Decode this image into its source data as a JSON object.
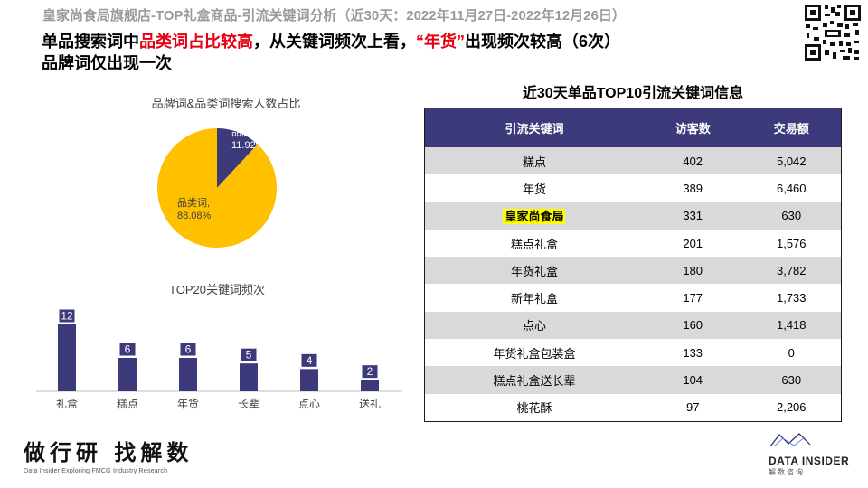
{
  "header": {
    "top_title": "皇家尚食局旗舰店-TOP礼盒商品-引流关键词分析（近30天：2022年11月27日-2022年12月26日）",
    "headline_part1": "单品搜索词中",
    "headline_red1": "品类词占比较高",
    "headline_part2": "，从关键词频次上看，",
    "headline_red2": "“年货”",
    "headline_part3": "出现频次较高（6次）",
    "headline_line2": "品牌词仅出现一次"
  },
  "colors": {
    "navy": "#3c3a7a",
    "gold": "#ffc000",
    "red": "#e60012",
    "highlight": "#ffff00"
  },
  "chart_data": [
    {
      "type": "pie",
      "title": "品牌词&品类词搜索人数占比",
      "slices": [
        {
          "name": "品牌词",
          "value": 11.92,
          "label": "品牌词,",
          "value_label": "11.92%"
        },
        {
          "name": "品类词",
          "value": 88.08,
          "label": "品类词,",
          "value_label": "88.08%"
        }
      ]
    },
    {
      "type": "bar",
      "title": "TOP20关键词频次",
      "categories": [
        "礼盒",
        "糕点",
        "年货",
        "长辈",
        "点心",
        "送礼"
      ],
      "values": [
        12,
        6,
        6,
        5,
        4,
        2
      ],
      "ylim": [
        0,
        12
      ]
    },
    {
      "type": "table",
      "title": "近30天单品TOP10引流关键词信息",
      "columns": [
        "引流关键词",
        "访客数",
        "交易额"
      ],
      "rows": [
        [
          "糕点",
          "402",
          "5,042"
        ],
        [
          "年货",
          "389",
          "6,460"
        ],
        [
          "皇家尚食局",
          "331",
          "630"
        ],
        [
          "糕点礼盒",
          "201",
          "1,576"
        ],
        [
          "年货礼盒",
          "180",
          "3,782"
        ],
        [
          "新年礼盒",
          "177",
          "1,733"
        ],
        [
          "点心",
          "160",
          "1,418"
        ],
        [
          "年货礼盒包装盒",
          "133",
          "0"
        ],
        [
          "糕点礼盒送长辈",
          "104",
          "630"
        ],
        [
          "桃花酥",
          "97",
          "2,206"
        ]
      ],
      "highlighted_keyword": "皇家尚食局"
    }
  ],
  "footer": {
    "left_logo_text": "做行研 找解数",
    "left_logo_sub": "Data Insider Exploring FMCG Industry Research",
    "right_logo_name": "DATA INSIDER",
    "right_logo_cn": "解数咨询"
  }
}
